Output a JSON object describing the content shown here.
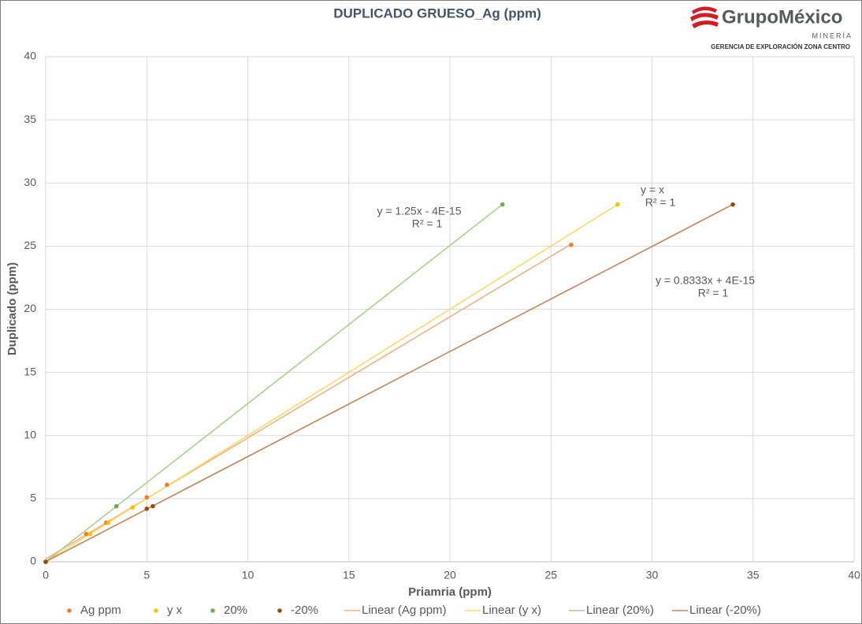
{
  "chart_data": {
    "type": "scatter",
    "title": "DUPLICADO GRUESO_Ag (ppm)",
    "logo": {
      "name": "GrupoMéxico",
      "sub": "MINERÍA",
      "caption": "GERENCIA DE EXPLORACIÓN ZONA CENTRO"
    },
    "x_label": "Priamria (ppm)",
    "y_label": "Duplicado (ppm)",
    "xlim": [
      0,
      40
    ],
    "ylim": [
      0,
      40
    ],
    "xticks": [
      0,
      5,
      10,
      15,
      20,
      25,
      30,
      35,
      40
    ],
    "yticks": [
      0,
      5,
      10,
      15,
      20,
      25,
      30,
      35,
      40
    ],
    "grid": true,
    "series": [
      {
        "name": "Ag ppm",
        "color": "#ed7d31",
        "x": [
          0,
          2,
          3,
          5,
          6,
          26
        ],
        "values": [
          0,
          2.2,
          3.1,
          5.1,
          6.1,
          25.1
        ]
      },
      {
        "name": "y x",
        "color": "#ffc000",
        "x": [
          0,
          2.2,
          3.1,
          4.3,
          28.3
        ],
        "values": [
          0,
          2.2,
          3.1,
          4.3,
          28.3
        ]
      },
      {
        "name": "20%",
        "color": "#70ad47",
        "x": [
          0,
          3.5,
          22.6
        ],
        "values": [
          0,
          4.4,
          28.3
        ]
      },
      {
        "name": "-20%",
        "color": "#9e480e",
        "x": [
          0,
          5,
          5.3,
          34
        ],
        "values": [
          0,
          4.2,
          4.4,
          28.3
        ]
      }
    ],
    "trendlines": [
      {
        "name": "Linear (Ag ppm)",
        "color": "#f4b183"
      },
      {
        "name": "Linear (y x)",
        "color": "#ffd966"
      },
      {
        "name": "Linear (20%)",
        "color": "#a9d18e"
      },
      {
        "name": "Linear (-20%)",
        "color": "#c5835a"
      }
    ],
    "annotations": [
      [
        "y = 1.25x - 4E-15",
        "R² = 1"
      ],
      [
        "y = x",
        "R² = 1"
      ],
      [
        "y = 0.8333x + 4E-15",
        "R² = 1"
      ]
    ]
  }
}
